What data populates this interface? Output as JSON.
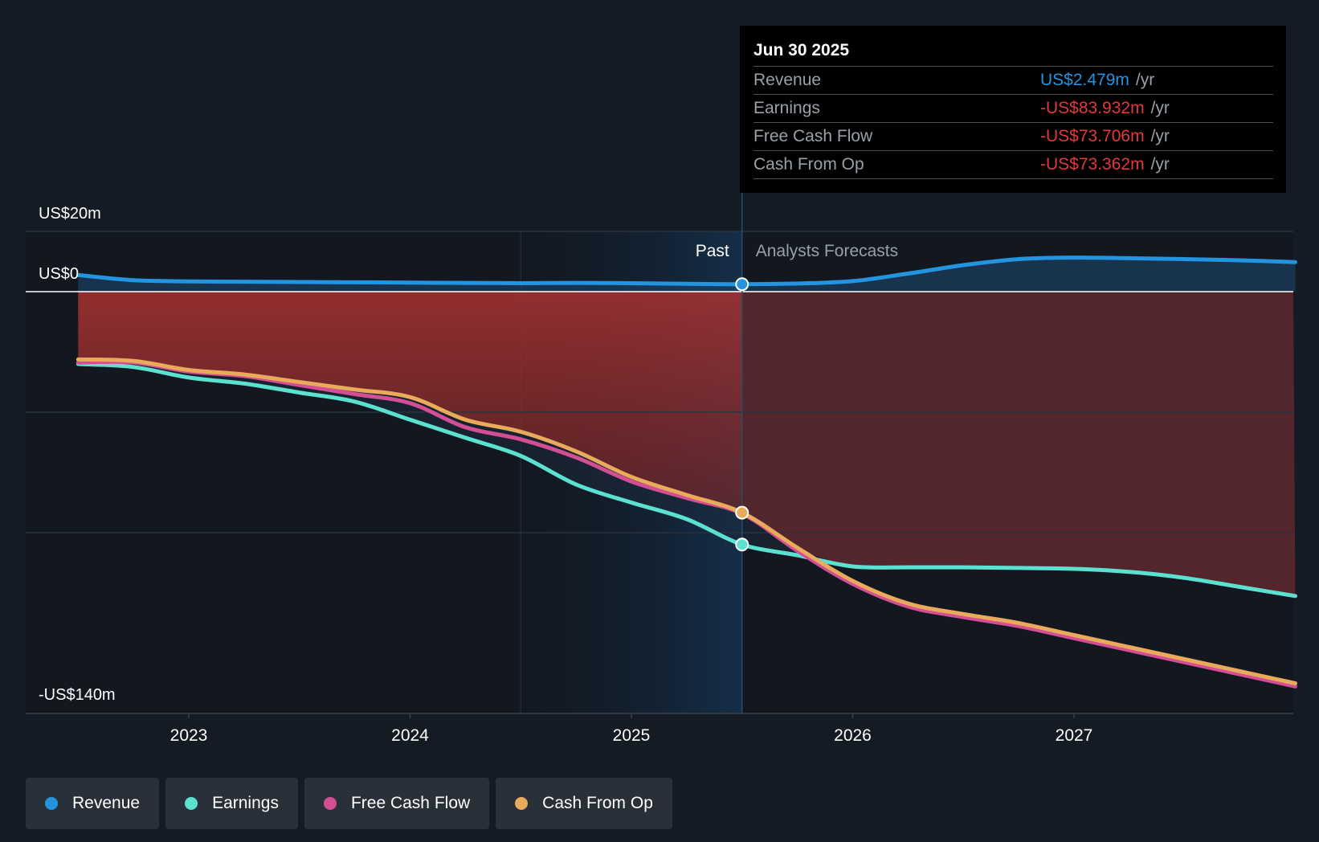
{
  "chart_data": {
    "type": "line",
    "y_axis": {
      "top_label": "US$20m",
      "zero_label": "US$0",
      "bottom_label": "-US$140m",
      "ylim": [
        -140,
        20
      ]
    },
    "x_ticks": [
      "2023",
      "2024",
      "2025",
      "2026",
      "2027"
    ],
    "regions": {
      "past_label": "Past",
      "forecast_label": "Analysts Forecasts"
    },
    "x": [
      2022.5,
      2022.75,
      2023.0,
      2023.25,
      2023.5,
      2023.75,
      2024.0,
      2024.25,
      2024.5,
      2024.75,
      2025.0,
      2025.25,
      2025.5,
      2025.75,
      2026.0,
      2026.25,
      2026.5,
      2026.75,
      2027.0,
      2027.25,
      2027.5,
      2027.75,
      2028.0
    ],
    "series": [
      {
        "name": "Revenue",
        "color": "#2394df",
        "values": [
          5.5,
          3.8,
          3.4,
          3.3,
          3.2,
          3.1,
          3.0,
          2.9,
          2.8,
          2.9,
          2.8,
          2.6,
          2.48,
          2.7,
          3.5,
          6.0,
          8.8,
          10.8,
          11.3,
          11.1,
          10.8,
          10.4,
          9.8
        ]
      },
      {
        "name": "Earnings",
        "color": "#5ce1d0",
        "values": [
          -24.0,
          -25.0,
          -28.5,
          -30.5,
          -33.5,
          -36.5,
          -42.5,
          -48.5,
          -54.5,
          -64.0,
          -70.0,
          -75.5,
          -83.932,
          -87.5,
          -91.2,
          -91.5,
          -91.5,
          -91.7,
          -92.0,
          -93.0,
          -95.0,
          -98.0,
          -101.0
        ]
      },
      {
        "name": "Free Cash Flow",
        "color": "#d34e95",
        "values": [
          -23.5,
          -23.5,
          -26.5,
          -28.0,
          -31.0,
          -34.0,
          -37.0,
          -45.0,
          -49.0,
          -55.0,
          -63.0,
          -68.5,
          -73.706,
          -86.0,
          -97.0,
          -104.5,
          -108.0,
          -111.0,
          -115.0,
          -119.0,
          -123.0,
          -127.0,
          -131.0
        ]
      },
      {
        "name": "Cash From Op",
        "color": "#e9aa5b",
        "values": [
          -22.5,
          -23.0,
          -26.0,
          -27.5,
          -30.0,
          -32.5,
          -35.0,
          -42.5,
          -46.5,
          -53.0,
          -61.5,
          -67.5,
          -73.362,
          -85.0,
          -96.0,
          -103.5,
          -107.0,
          -110.0,
          -114.0,
          -118.0,
          -122.0,
          -126.0,
          -130.0
        ]
      }
    ],
    "highlight_x": 2025.5
  },
  "tooltip": {
    "date": "Jun 30 2025",
    "rows": [
      {
        "label": "Revenue",
        "value": "US$2.479m",
        "unit": "/yr",
        "color": "#2394df"
      },
      {
        "label": "Earnings",
        "value": "-US$83.932m",
        "unit": "/yr",
        "color": "#e5383b"
      },
      {
        "label": "Free Cash Flow",
        "value": "-US$73.706m",
        "unit": "/yr",
        "color": "#e5383b"
      },
      {
        "label": "Cash From Op",
        "value": "-US$73.362m",
        "unit": "/yr",
        "color": "#e5383b"
      }
    ]
  },
  "legend": [
    {
      "label": "Revenue",
      "color": "#2394df"
    },
    {
      "label": "Earnings",
      "color": "#5ce1d0"
    },
    {
      "label": "Free Cash Flow",
      "color": "#d34e95"
    },
    {
      "label": "Cash From Op",
      "color": "#e9aa5b"
    }
  ]
}
